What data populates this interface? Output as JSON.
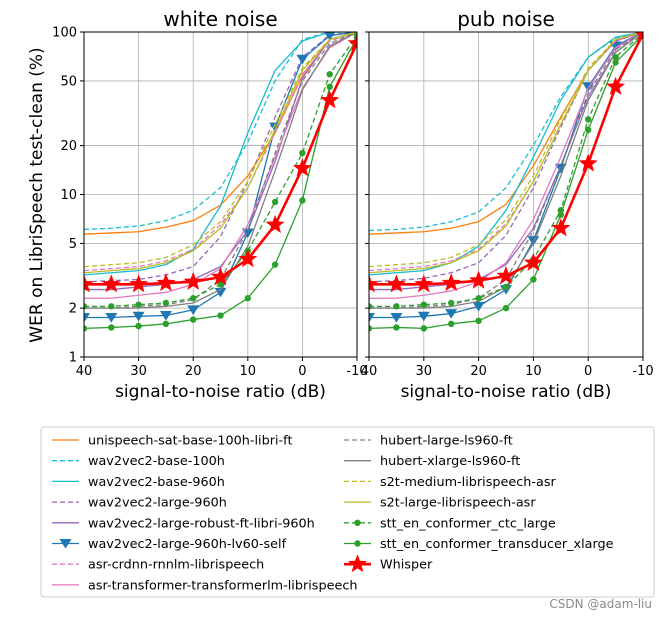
{
  "chart_data": {
    "type": "line",
    "shared_y_label": "WER on LibriSpeech test-clean (%)",
    "x_categories": [
      40,
      35,
      30,
      25,
      20,
      15,
      10,
      5,
      0,
      -5,
      -10
    ],
    "x_ticks": [
      40,
      30,
      20,
      10,
      0,
      -10
    ],
    "x_ticklabels": [
      "40",
      "30",
      "20",
      "10",
      "0",
      "-10"
    ],
    "y_scale": "log",
    "ylim": [
      1,
      100
    ],
    "y_ticks": [
      1,
      2,
      5,
      10,
      20,
      50,
      100
    ],
    "y_ticklabels": [
      "1",
      "2",
      "5",
      "10",
      "20",
      "50",
      "100"
    ],
    "grid": true,
    "legend_position": "bottom",
    "panels": [
      {
        "title": "white noise",
        "xlabel": "signal-to-noise ratio (dB)",
        "series": [
          {
            "name": "unispeech-sat-base-100h-libri-ft",
            "color": "#ff7f0e",
            "dash": "solid",
            "marker": "none",
            "values": [
              5.7,
              5.8,
              5.9,
              6.3,
              6.9,
              8.6,
              13,
              24,
              54,
              90,
              100
            ]
          },
          {
            "name": "wav2vec2-base-100h",
            "color": "#17becf",
            "dash": "dashed",
            "marker": "none",
            "values": [
              6.1,
              6.2,
              6.4,
              6.9,
              8.0,
              11,
              21,
              50,
              90,
              100,
              100
            ]
          },
          {
            "name": "wav2vec2-base-960h",
            "color": "#17becf",
            "dash": "solid",
            "marker": "none",
            "values": [
              3.2,
              3.3,
              3.4,
              3.7,
              4.6,
              8.5,
              24,
              58,
              88,
              100,
              100
            ]
          },
          {
            "name": "wav2vec2-large-960h",
            "color": "#9467bd",
            "dash": "dashed",
            "marker": "none",
            "values": [
              2.9,
              2.95,
              3.0,
              3.2,
              3.6,
              5.5,
              12,
              30,
              70,
              96,
              100
            ]
          },
          {
            "name": "wav2vec2-large-robust-ft-libri-960h",
            "color": "#9467bd",
            "dash": "solid",
            "marker": "none",
            "values": [
              2.6,
              2.6,
              2.7,
              2.8,
              3.0,
              3.6,
              6.0,
              16,
              52,
              90,
              100
            ]
          },
          {
            "name": "wav2vec2-large-960h-lv60-self",
            "color": "#1f77b4",
            "dash": "solid",
            "marker": "triangle",
            "values": [
              1.75,
              1.75,
              1.78,
              1.8,
              1.95,
              2.5,
              5.8,
              26,
              68,
              95,
              100
            ]
          },
          {
            "name": "asr-crdnn-rnnlm-librispeech",
            "color": "#e377c2",
            "dash": "dashed",
            "marker": "none",
            "values": [
              3.4,
              3.5,
              3.6,
              3.9,
              4.6,
              6.5,
              11,
              24,
              55,
              88,
              100
            ]
          },
          {
            "name": "asr-transformer-transformerlm-librispeech",
            "color": "#e377c2",
            "dash": "solid",
            "marker": "none",
            "values": [
              2.3,
              2.3,
              2.4,
              2.5,
              2.8,
              3.5,
              6.5,
              17,
              45,
              80,
              100
            ]
          },
          {
            "name": "hubert-large-ls960-ft",
            "color": "#7f7f7f",
            "dash": "dashed",
            "marker": "none",
            "values": [
              2.0,
              2.0,
              2.05,
              2.1,
              2.25,
              3.0,
              6.0,
              18,
              50,
              85,
              100
            ]
          },
          {
            "name": "hubert-xlarge-ls960-ft",
            "color": "#7f7f7f",
            "dash": "solid",
            "marker": "none",
            "values": [
              2.0,
              2.0,
              2.0,
              2.05,
              2.15,
              2.6,
              4.8,
              14,
              44,
              82,
              100
            ]
          },
          {
            "name": "s2t-medium-librispeech-asr",
            "color": "#bcbd22",
            "dash": "dashed",
            "marker": "none",
            "values": [
              3.6,
              3.7,
              3.8,
              4.1,
              4.9,
              6.8,
              12,
              27,
              60,
              90,
              100
            ]
          },
          {
            "name": "s2t-large-librispeech-asr",
            "color": "#bcbd22",
            "dash": "solid",
            "marker": "none",
            "values": [
              3.3,
              3.4,
              3.5,
              3.8,
              4.5,
              6.2,
              11,
              25,
              58,
              90,
              100
            ]
          },
          {
            "name": "stt_en_conformer_ctc_large",
            "color": "#2ca02c",
            "dash": "dashed",
            "marker": "circle",
            "values": [
              2.05,
              2.05,
              2.1,
              2.15,
              2.3,
              2.8,
              4.5,
              9.0,
              18,
              55,
              95
            ]
          },
          {
            "name": "stt_en_conformer_transducer_xlarge",
            "color": "#2ca02c",
            "dash": "solid",
            "marker": "circle",
            "values": [
              1.5,
              1.52,
              1.55,
              1.6,
              1.7,
              1.8,
              2.3,
              3.7,
              9.2,
              46,
              92
            ]
          },
          {
            "name": "Whisper",
            "color": "#ff0000",
            "dash": "solid",
            "marker": "star",
            "values": [
              2.8,
              2.8,
              2.8,
              2.85,
              2.9,
              3.1,
              4.0,
              6.5,
              14.5,
              38,
              85
            ]
          }
        ]
      },
      {
        "title": "pub noise",
        "xlabel": "signal-to-noise ratio (dB)",
        "series": [
          {
            "name": "unispeech-sat-base-100h-libri-ft",
            "color": "#ff7f0e",
            "dash": "solid",
            "marker": "none",
            "values": [
              5.7,
              5.8,
              5.9,
              6.2,
              6.8,
              8.7,
              15,
              30,
              58,
              88,
              100
            ]
          },
          {
            "name": "wav2vec2-base-100h",
            "color": "#17becf",
            "dash": "dashed",
            "marker": "none",
            "values": [
              6.0,
              6.1,
              6.3,
              6.8,
              7.8,
              11,
              20,
              40,
              70,
              92,
              100
            ]
          },
          {
            "name": "wav2vec2-base-960h",
            "color": "#17becf",
            "dash": "solid",
            "marker": "none",
            "values": [
              3.2,
              3.3,
              3.4,
              3.8,
              4.8,
              8.0,
              17,
              38,
              70,
              93,
              100
            ]
          },
          {
            "name": "wav2vec2-large-960h",
            "color": "#9467bd",
            "dash": "dashed",
            "marker": "none",
            "values": [
              2.9,
              2.95,
              3.05,
              3.3,
              3.8,
              5.6,
              11,
              26,
              58,
              88,
              100
            ]
          },
          {
            "name": "wav2vec2-large-robust-ft-libri-960h",
            "color": "#9467bd",
            "dash": "solid",
            "marker": "none",
            "values": [
              2.6,
              2.6,
              2.7,
              2.8,
              3.0,
              3.7,
              6.2,
              15,
              40,
              75,
              100
            ]
          },
          {
            "name": "wav2vec2-large-960h-lv60-self",
            "color": "#1f77b4",
            "dash": "solid",
            "marker": "triangle",
            "values": [
              1.75,
              1.75,
              1.78,
              1.85,
              2.05,
              2.6,
              5.2,
              14.5,
              46,
              82,
              100
            ]
          },
          {
            "name": "asr-crdnn-rnnlm-librispeech",
            "color": "#e377c2",
            "dash": "dashed",
            "marker": "none",
            "values": [
              3.4,
              3.5,
              3.6,
              3.9,
              4.6,
              6.6,
              12,
              27,
              58,
              88,
              100
            ]
          },
          {
            "name": "asr-transformer-transformerlm-librispeech",
            "color": "#e377c2",
            "dash": "solid",
            "marker": "none",
            "values": [
              2.3,
              2.3,
              2.4,
              2.55,
              2.9,
              3.8,
              7.0,
              17,
              45,
              80,
              100
            ]
          },
          {
            "name": "hubert-large-ls960-ft",
            "color": "#7f7f7f",
            "dash": "dashed",
            "marker": "none",
            "values": [
              2.0,
              2.0,
              2.05,
              2.1,
              2.3,
              3.0,
              6.0,
              15,
              42,
              78,
              100
            ]
          },
          {
            "name": "hubert-xlarge-ls960-ft",
            "color": "#7f7f7f",
            "dash": "solid",
            "marker": "none",
            "values": [
              2.0,
              2.0,
              2.0,
              2.05,
              2.2,
              2.7,
              5.0,
              13,
              38,
              75,
              100
            ]
          },
          {
            "name": "s2t-medium-librispeech-asr",
            "color": "#bcbd22",
            "dash": "dashed",
            "marker": "none",
            "values": [
              3.6,
              3.7,
              3.8,
              4.1,
              4.9,
              7.0,
              13,
              29,
              60,
              90,
              100
            ]
          },
          {
            "name": "s2t-large-librispeech-asr",
            "color": "#bcbd22",
            "dash": "solid",
            "marker": "none",
            "values": [
              3.3,
              3.4,
              3.5,
              3.8,
              4.5,
              6.4,
              12,
              27,
              58,
              90,
              100
            ]
          },
          {
            "name": "stt_en_conformer_ctc_large",
            "color": "#2ca02c",
            "dash": "dashed",
            "marker": "circle",
            "values": [
              2.05,
              2.05,
              2.1,
              2.15,
              2.3,
              2.7,
              4.0,
              8.0,
              29,
              70,
              98
            ]
          },
          {
            "name": "stt_en_conformer_transducer_xlarge",
            "color": "#2ca02c",
            "dash": "solid",
            "marker": "circle",
            "values": [
              1.5,
              1.52,
              1.5,
              1.6,
              1.67,
              2.0,
              3.0,
              7.5,
              25,
              65,
              96
            ]
          },
          {
            "name": "Whisper",
            "color": "#ff0000",
            "dash": "solid",
            "marker": "star",
            "values": [
              2.8,
              2.8,
              2.8,
              2.85,
              2.95,
              3.15,
              3.8,
              6.2,
              15.5,
              46,
              97
            ]
          }
        ]
      }
    ],
    "legend_column_1": [
      "unispeech-sat-base-100h-libri-ft",
      "wav2vec2-base-100h",
      "wav2vec2-base-960h",
      "wav2vec2-large-960h",
      "wav2vec2-large-robust-ft-libri-960h",
      "wav2vec2-large-960h-lv60-self",
      "asr-crdnn-rnnlm-librispeech",
      "asr-transformer-transformerlm-librispeech"
    ],
    "legend_column_2": [
      "hubert-large-ls960-ft",
      "hubert-xlarge-ls960-ft",
      "s2t-medium-librispeech-asr",
      "s2t-large-librispeech-asr",
      "stt_en_conformer_ctc_large",
      "stt_en_conformer_transducer_xlarge",
      "Whisper"
    ]
  },
  "watermark": "CSDN @adam-liu"
}
